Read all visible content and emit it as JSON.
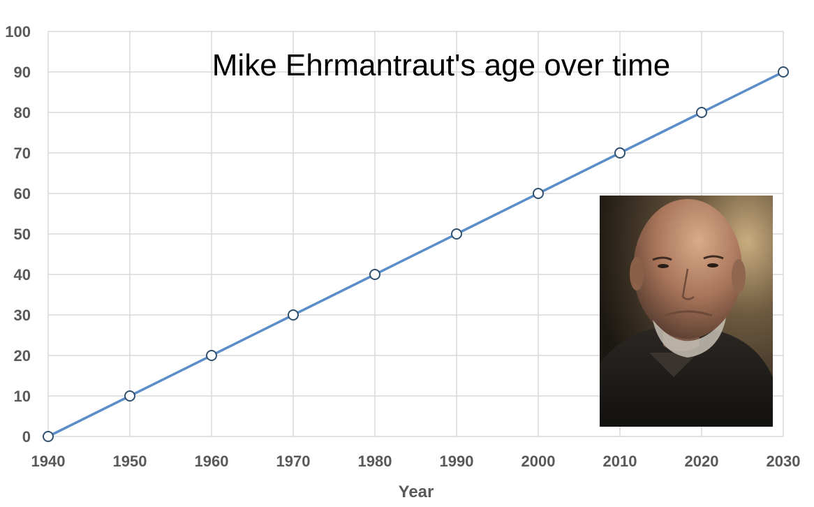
{
  "chart_data": {
    "type": "line",
    "title": "Mike Ehrmantraut's age over time",
    "xlabel": "Year",
    "ylabel": "",
    "x": [
      1940,
      1950,
      1960,
      1970,
      1980,
      1990,
      2000,
      2010,
      2020,
      2030
    ],
    "series": [
      {
        "values": [
          0,
          10,
          20,
          30,
          40,
          50,
          60,
          70,
          80,
          90
        ],
        "color": "#5b8ec9",
        "marker": "hollow-circle"
      }
    ],
    "xlim": [
      1940,
      2030
    ],
    "ylim": [
      0,
      100
    ],
    "xticks": [
      "1940",
      "1950",
      "1960",
      "1970",
      "1980",
      "1990",
      "2000",
      "2010",
      "2020",
      "2030"
    ],
    "yticks": [
      "0",
      "10",
      "20",
      "30",
      "40",
      "50",
      "60",
      "70",
      "80",
      "90",
      "100"
    ],
    "grid": true,
    "legend": "none",
    "photo": "portrait of bald older man in dark jacket"
  }
}
